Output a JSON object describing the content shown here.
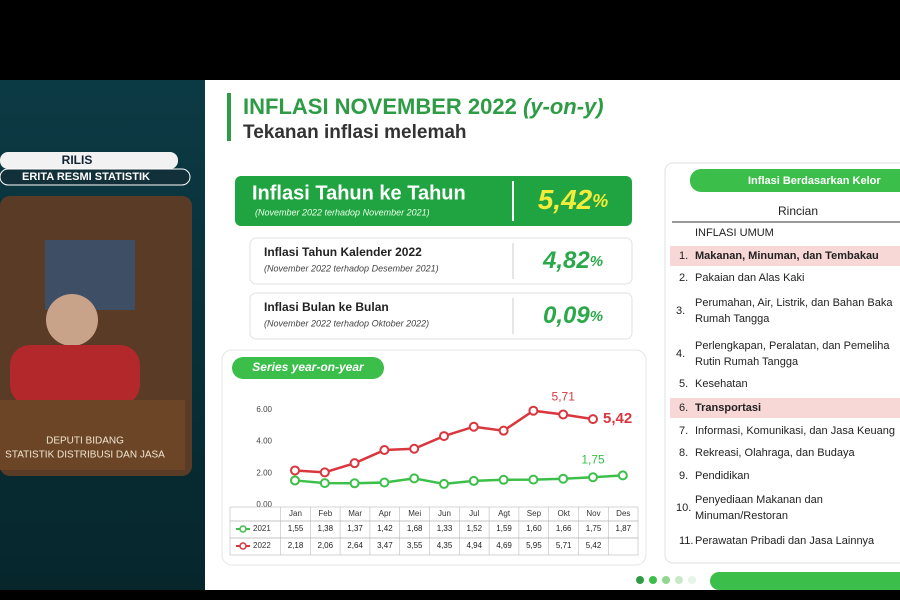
{
  "left_panel": {
    "badge": "RILIS",
    "banner": "ERITA RESMI STATISTIK",
    "podium": [
      "DEPUTI BIDANG",
      "STATISTIK DISTRIBUSI DAN JASA"
    ]
  },
  "header": {
    "title": "INFLASI NOVEMBER 2022",
    "title_suffix": "(y-on-y)",
    "subtitle": "Tekanan inflasi melemah"
  },
  "cards": [
    {
      "title": "Inflasi Tahun ke Tahun",
      "note": "(November 2022 terhadop November 2021)",
      "value": "5,42",
      "unit": "%"
    },
    {
      "title": "Inflasi Tahun Kalender 2022",
      "note": "(November 2022 terhadop Desember 2021)",
      "value": "4,82",
      "unit": "%"
    },
    {
      "title": "Inflasi Bulan ke Bulan",
      "note": "(November 2022 terhadop Oktober 2022)",
      "value": "0,09",
      "unit": "%"
    }
  ],
  "chart_data": {
    "type": "line",
    "title": "Series year-on-year",
    "categories": [
      "Jan",
      "Feb",
      "Mar",
      "Apr",
      "Mei",
      "Jun",
      "Jul",
      "Agt",
      "Sep",
      "Okt",
      "Nov",
      "Des"
    ],
    "ylim": [
      0,
      6.5
    ],
    "yticks": [
      {
        "value": 0,
        "label": "0.00"
      },
      {
        "value": 2,
        "label": "2.00"
      },
      {
        "value": 4,
        "label": "4.00"
      },
      {
        "value": 6,
        "label": "6.00"
      }
    ],
    "grid": false,
    "series": [
      {
        "name": "2021",
        "color": "#3cc04a",
        "values": [
          1.55,
          1.38,
          1.37,
          1.42,
          1.68,
          1.33,
          1.52,
          1.59,
          1.6,
          1.66,
          1.75,
          1.87
        ],
        "value_labels": [
          "1,55",
          "1,38",
          "1,37",
          "1,42",
          "1,68",
          "1,33",
          "1,52",
          "1,59",
          "1,60",
          "1,66",
          "1,75",
          "1,87"
        ]
      },
      {
        "name": "2022",
        "color": "#d9363e",
        "values": [
          2.18,
          2.06,
          2.64,
          3.47,
          3.55,
          4.35,
          4.94,
          4.69,
          5.95,
          5.71,
          5.42,
          null
        ],
        "value_labels": [
          "2,18",
          "2,06",
          "2,64",
          "3,47",
          "3,55",
          "4,35",
          "4,94",
          "4,69",
          "5,95",
          "5,71",
          "5,42",
          null
        ]
      }
    ]
  },
  "breakdown": {
    "header": "Inflasi Berdasarkan Kelor",
    "column": "Rincian",
    "total": "INFLASI UMUM",
    "items": [
      {
        "number": "1.",
        "lines": [
          "Makanan, Minuman, dan Tembakau"
        ],
        "highlight": true
      },
      {
        "number": "2.",
        "lines": [
          "Pakaian dan Alas Kaki"
        ]
      },
      {
        "number": "3.",
        "lines": [
          "Perumahan, Air, Listrik, dan Bahan Baka",
          "Rumah Tangga"
        ]
      },
      {
        "number": "4.",
        "lines": [
          "Perlengkapan, Peralatan, dan Pemeliha",
          "Rutin Rumah Tangga"
        ]
      },
      {
        "number": "5.",
        "lines": [
          "Kesehatan"
        ]
      },
      {
        "number": "6.",
        "lines": [
          "Transportasi"
        ],
        "highlight": true
      },
      {
        "number": "7.",
        "lines": [
          "Informasi, Komunikasi, dan Jasa Keuang"
        ]
      },
      {
        "number": "8.",
        "lines": [
          "Rekreasi, Olahraga, dan Budaya"
        ]
      },
      {
        "number": "9.",
        "lines": [
          "Pendidikan"
        ]
      },
      {
        "number": "10.",
        "lines": [
          "Penyediaan Makanan dan",
          "Minuman/Restoran"
        ]
      },
      {
        "number": "11.",
        "lines": [
          "Perawatan Pribadi dan Jasa Lainnya"
        ]
      }
    ]
  }
}
